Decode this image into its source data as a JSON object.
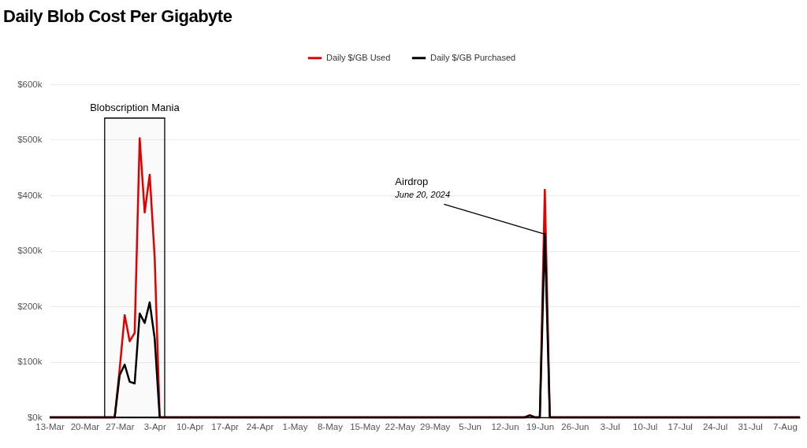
{
  "chart_data": {
    "type": "line",
    "title": "Daily Blob Cost Per Gigabyte",
    "x": [
      "2024-03-13",
      "2024-03-26",
      "2024-03-27",
      "2024-03-28",
      "2024-03-29",
      "2024-03-30",
      "2024-03-31",
      "2024-04-01",
      "2024-04-02",
      "2024-04-03",
      "2024-04-04",
      "2024-06-16",
      "2024-06-17",
      "2024-06-18",
      "2024-06-19",
      "2024-06-20",
      "2024-06-21",
      "2024-08-10"
    ],
    "series": [
      {
        "name": "Daily $/GB Used",
        "color": "#e60000",
        "values": [
          0,
          0,
          87000,
          184000,
          137000,
          152000,
          503000,
          369000,
          437000,
          288000,
          0,
          0,
          4000,
          0,
          0,
          410000,
          0,
          0
        ]
      },
      {
        "name": "Daily $/GB Purchased",
        "color": "#000000",
        "values": [
          0,
          0,
          76000,
          95000,
          64000,
          61000,
          187000,
          170000,
          207000,
          142000,
          0,
          0,
          3000,
          0,
          0,
          331000,
          0,
          0
        ]
      }
    ],
    "xlim": [
      "2024-03-13",
      "2024-08-10"
    ],
    "xticks": [
      {
        "value": "2024-03-13",
        "label": "13-Mar"
      },
      {
        "value": "2024-03-20",
        "label": "20-Mar"
      },
      {
        "value": "2024-03-27",
        "label": "27-Mar"
      },
      {
        "value": "2024-04-03",
        "label": "3-Apr"
      },
      {
        "value": "2024-04-10",
        "label": "10-Apr"
      },
      {
        "value": "2024-04-17",
        "label": "17-Apr"
      },
      {
        "value": "2024-04-24",
        "label": "24-Apr"
      },
      {
        "value": "2024-05-01",
        "label": "1-May"
      },
      {
        "value": "2024-05-08",
        "label": "8-May"
      },
      {
        "value": "2024-05-15",
        "label": "15-May"
      },
      {
        "value": "2024-05-22",
        "label": "22-May"
      },
      {
        "value": "2024-05-29",
        "label": "29-May"
      },
      {
        "value": "2024-06-05",
        "label": "5-Jun"
      },
      {
        "value": "2024-06-12",
        "label": "12-Jun"
      },
      {
        "value": "2024-06-19",
        "label": "19-Jun"
      },
      {
        "value": "2024-06-26",
        "label": "26-Jun"
      },
      {
        "value": "2024-07-03",
        "label": "3-Jul"
      },
      {
        "value": "2024-07-10",
        "label": "10-Jul"
      },
      {
        "value": "2024-07-17",
        "label": "17-Jul"
      },
      {
        "value": "2024-07-24",
        "label": "24-Jul"
      },
      {
        "value": "2024-07-31",
        "label": "31-Jul"
      },
      {
        "value": "2024-08-07",
        "label": "7-Aug"
      }
    ],
    "ylim": [
      0,
      600000
    ],
    "yticks": [
      {
        "value": 0,
        "label": "$0k"
      },
      {
        "value": 100000,
        "label": "$100k"
      },
      {
        "value": 200000,
        "label": "$200k"
      },
      {
        "value": 300000,
        "label": "$300k"
      },
      {
        "value": 400000,
        "label": "$400k"
      },
      {
        "value": 500000,
        "label": "$500k"
      },
      {
        "value": 600000,
        "label": "$600k"
      }
    ],
    "bands": [
      {
        "axis": "x",
        "from": "2024-03-24",
        "to": "2024-04-05",
        "label": "Blobscription Mania"
      }
    ],
    "annotations": [
      "Airdrop",
      {
        "text": "June 20, 2024",
        "x": "2024-06-20",
        "y": 330000
      }
    ],
    "grid": "y",
    "legend": "top",
    "line_style": "solid",
    "marker": "none"
  }
}
